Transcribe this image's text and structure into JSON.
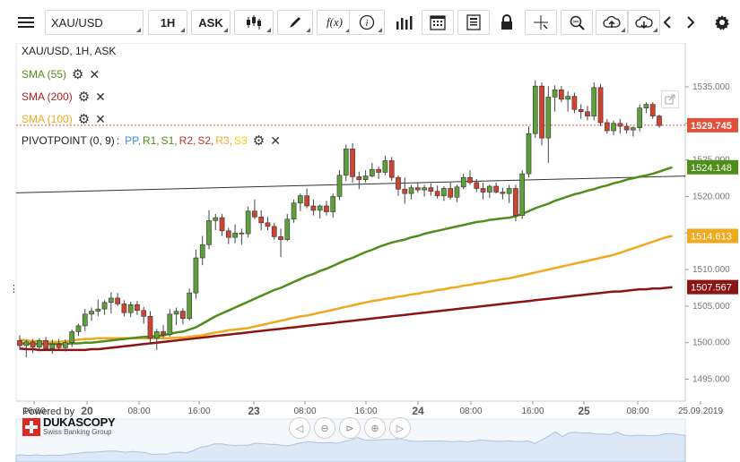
{
  "toolbar": {
    "menu_icon": "hamburger-menu-icon",
    "symbol": "XAU/USD",
    "timeframe": "1H",
    "side": "ASK",
    "icons": [
      "candlestick-icon",
      "draw-pen-icon",
      "function-icon",
      "info-icon",
      "volume-bars-icon",
      "calendar-icon",
      "report-icon",
      "lock-icon",
      "crosshair-icon",
      "zoom-icon",
      "upload-cloud-icon",
      "download-cloud-icon",
      "arrow-left-icon",
      "arrow-right-icon",
      "gear-icon"
    ],
    "fx_label": "f(x)"
  },
  "legend": {
    "title": "XAU/USD, 1H, ASK",
    "sma55": {
      "label": "SMA (55)",
      "color": "#4f8e1a"
    },
    "sma200": {
      "label": "SMA (200)",
      "color": "#b02020"
    },
    "sma100": {
      "label": "SMA (100)",
      "color": "#f0a81e"
    },
    "pivot": {
      "label": "PIVOTPOINT (0, 9)",
      "sep": ":",
      "items": [
        {
          "label": "PP",
          "color": "#3a8ee6"
        },
        {
          "label": "R1",
          "color": "#4f8e1a"
        },
        {
          "label": "S1",
          "color": "#4f8e1a"
        },
        {
          "label": "R2",
          "color": "#c0392b"
        },
        {
          "label": "S2",
          "color": "#c0392b"
        },
        {
          "label": "R3",
          "color": "#f0a81e"
        },
        {
          "label": "S3",
          "color": "#f0d000"
        }
      ]
    }
  },
  "branding": {
    "powered_by": "Powered by",
    "name": "DUKASCOPY",
    "sub": "Swiss Banking Group"
  },
  "price_labels": [
    {
      "value": "1529.745",
      "color": "#e0503a"
    },
    {
      "value": "1524.148",
      "color": "#4f8e1a"
    },
    {
      "value": "1514.613",
      "color": "#f0a81e"
    },
    {
      "value": "1507.567",
      "color": "#8b1414"
    }
  ],
  "chart_data": {
    "type": "candlestick",
    "symbol": "XAU/USD",
    "interval": "1H",
    "side": "ASK",
    "ylim": [
      1492,
      1541
    ],
    "yticks": [
      1495,
      1500,
      1505,
      1510,
      1515,
      1520,
      1525,
      1530,
      1535
    ],
    "ytick_labels": [
      "1495.000",
      "1500.000",
      "1505.000",
      "1510.000",
      "1515.000",
      "1520.000",
      "1525.000",
      "1530.000",
      "1535.000"
    ],
    "x_ticks": [
      {
        "label": "16:00",
        "bold": false
      },
      {
        "label": "20",
        "bold": true
      },
      {
        "label": "08:00",
        "bold": false
      },
      {
        "label": "16:00",
        "bold": false
      },
      {
        "label": "23",
        "bold": true
      },
      {
        "label": "08:00",
        "bold": false
      },
      {
        "label": "16:00",
        "bold": false
      },
      {
        "label": "24",
        "bold": true
      },
      {
        "label": "08:00",
        "bold": false
      },
      {
        "label": "16:00",
        "bold": false
      },
      {
        "label": "25",
        "bold": true
      },
      {
        "label": "08:00",
        "bold": false
      },
      {
        "label": "25.09.2019",
        "bold": false
      }
    ],
    "candles": [
      [
        1500.3,
        1501.0,
        1499.0,
        1499.6
      ],
      [
        1499.6,
        1500.4,
        1498.0,
        1500.1
      ],
      [
        1500.1,
        1500.5,
        1498.6,
        1499.4
      ],
      [
        1499.4,
        1500.6,
        1498.8,
        1500.3
      ],
      [
        1500.3,
        1500.8,
        1499.0,
        1499.2
      ],
      [
        1499.2,
        1500.4,
        1498.5,
        1499.8
      ],
      [
        1499.8,
        1500.5,
        1498.9,
        1499.3
      ],
      [
        1499.3,
        1500.4,
        1498.8,
        1500.0
      ],
      [
        1500.0,
        1501.8,
        1499.4,
        1501.5
      ],
      [
        1501.5,
        1502.6,
        1500.9,
        1502.3
      ],
      [
        1502.3,
        1504.6,
        1501.6,
        1503.9
      ],
      [
        1503.9,
        1504.8,
        1503.0,
        1504.3
      ],
      [
        1504.3,
        1505.9,
        1503.6,
        1504.6
      ],
      [
        1504.6,
        1505.8,
        1503.8,
        1505.5
      ],
      [
        1505.5,
        1506.9,
        1504.0,
        1506.1
      ],
      [
        1506.1,
        1506.8,
        1505.0,
        1505.3
      ],
      [
        1505.3,
        1505.8,
        1503.6,
        1504.1
      ],
      [
        1504.1,
        1505.6,
        1503.5,
        1505.2
      ],
      [
        1505.2,
        1505.7,
        1503.8,
        1504.4
      ],
      [
        1504.4,
        1504.9,
        1502.6,
        1503.6
      ],
      [
        1503.6,
        1504.3,
        1500.0,
        1500.6
      ],
      [
        1500.6,
        1501.9,
        1499.0,
        1501.5
      ],
      [
        1501.5,
        1502.4,
        1500.7,
        1501.1
      ],
      [
        1501.1,
        1504.6,
        1500.8,
        1503.9
      ],
      [
        1503.9,
        1504.8,
        1502.4,
        1504.3
      ],
      [
        1504.3,
        1504.7,
        1502.5,
        1503.3
      ],
      [
        1503.3,
        1507.4,
        1503.0,
        1506.8
      ],
      [
        1506.8,
        1512.7,
        1506.0,
        1511.6
      ],
      [
        1511.6,
        1514.6,
        1510.6,
        1513.4
      ],
      [
        1513.4,
        1518.1,
        1512.8,
        1516.7
      ],
      [
        1516.7,
        1517.6,
        1515.4,
        1517.1
      ],
      [
        1517.1,
        1517.6,
        1514.6,
        1515.3
      ],
      [
        1515.3,
        1515.7,
        1513.5,
        1514.4
      ],
      [
        1514.4,
        1516.2,
        1513.6,
        1515.0
      ],
      [
        1515.0,
        1515.6,
        1513.4,
        1514.9
      ],
      [
        1514.9,
        1518.6,
        1514.4,
        1518.0
      ],
      [
        1518.0,
        1519.6,
        1516.9,
        1517.2
      ],
      [
        1517.2,
        1518.1,
        1515.4,
        1516.4
      ],
      [
        1516.4,
        1517.2,
        1515.4,
        1515.9
      ],
      [
        1515.9,
        1516.4,
        1514.1,
        1514.5
      ],
      [
        1514.5,
        1515.6,
        1511.7,
        1514.1
      ],
      [
        1514.1,
        1517.6,
        1513.9,
        1516.9
      ],
      [
        1516.9,
        1519.6,
        1516.4,
        1519.1
      ],
      [
        1519.1,
        1520.4,
        1518.0,
        1520.1
      ],
      [
        1520.1,
        1521.1,
        1518.4,
        1518.7
      ],
      [
        1518.7,
        1519.6,
        1517.4,
        1518.1
      ],
      [
        1518.1,
        1518.9,
        1517.0,
        1518.7
      ],
      [
        1518.7,
        1519.4,
        1517.4,
        1517.9
      ],
      [
        1517.9,
        1520.4,
        1517.1,
        1520.0
      ],
      [
        1520.0,
        1523.6,
        1519.5,
        1522.9
      ],
      [
        1522.9,
        1527.1,
        1522.1,
        1526.5
      ],
      [
        1526.5,
        1527.3,
        1521.9,
        1522.7
      ],
      [
        1522.7,
        1523.4,
        1521.0,
        1522.3
      ],
      [
        1522.3,
        1523.6,
        1521.9,
        1522.8
      ],
      [
        1522.8,
        1524.6,
        1522.6,
        1523.7
      ],
      [
        1523.7,
        1524.1,
        1522.4,
        1523.3
      ],
      [
        1523.3,
        1525.6,
        1522.9,
        1524.9
      ],
      [
        1524.9,
        1525.4,
        1522.1,
        1522.6
      ],
      [
        1522.6,
        1522.9,
        1520.1,
        1521.0
      ],
      [
        1521.0,
        1522.6,
        1519.0,
        1520.4
      ],
      [
        1520.4,
        1521.6,
        1519.6,
        1521.2
      ],
      [
        1521.2,
        1521.9,
        1520.5,
        1520.9
      ],
      [
        1520.9,
        1521.6,
        1520.0,
        1521.2
      ],
      [
        1521.2,
        1521.8,
        1520.1,
        1520.7
      ],
      [
        1520.7,
        1521.5,
        1519.7,
        1520.1
      ],
      [
        1520.1,
        1521.4,
        1519.4,
        1521.1
      ],
      [
        1521.1,
        1521.9,
        1519.6,
        1519.9
      ],
      [
        1519.9,
        1521.6,
        1519.2,
        1521.3
      ],
      [
        1521.3,
        1523.1,
        1521.0,
        1522.6
      ],
      [
        1522.6,
        1523.6,
        1521.6,
        1521.9
      ],
      [
        1521.9,
        1522.4,
        1520.6,
        1521.1
      ],
      [
        1521.1,
        1521.9,
        1519.6,
        1520.6
      ],
      [
        1520.6,
        1521.6,
        1519.8,
        1521.4
      ],
      [
        1521.4,
        1521.9,
        1520.4,
        1520.6
      ],
      [
        1520.6,
        1521.2,
        1519.6,
        1520.4
      ],
      [
        1520.4,
        1521.6,
        1519.1,
        1521.1
      ],
      [
        1521.1,
        1521.6,
        1516.6,
        1517.4
      ],
      [
        1517.4,
        1523.6,
        1516.9,
        1523.1
      ],
      [
        1523.1,
        1529.6,
        1522.6,
        1528.6
      ],
      [
        1528.6,
        1535.9,
        1528.0,
        1535.1
      ],
      [
        1535.1,
        1535.6,
        1527.0,
        1528.0
      ],
      [
        1528.0,
        1535.1,
        1524.6,
        1533.6
      ],
      [
        1533.6,
        1535.2,
        1531.6,
        1534.6
      ],
      [
        1534.6,
        1535.1,
        1532.9,
        1533.3
      ],
      [
        1533.3,
        1534.4,
        1531.6,
        1533.7
      ],
      [
        1533.7,
        1534.2,
        1531.4,
        1531.9
      ],
      [
        1531.9,
        1532.6,
        1530.6,
        1531.6
      ],
      [
        1531.6,
        1532.4,
        1530.4,
        1531.0
      ],
      [
        1531.0,
        1535.6,
        1530.4,
        1534.9
      ],
      [
        1534.9,
        1535.4,
        1529.6,
        1530.1
      ],
      [
        1530.1,
        1530.6,
        1528.6,
        1529.0
      ],
      [
        1529.0,
        1530.4,
        1528.4,
        1530.0
      ],
      [
        1530.0,
        1530.6,
        1528.6,
        1529.6
      ],
      [
        1529.6,
        1530.1,
        1528.6,
        1529.1
      ],
      [
        1529.1,
        1529.6,
        1528.2,
        1529.4
      ],
      [
        1529.4,
        1532.6,
        1528.9,
        1532.1
      ],
      [
        1532.1,
        1532.9,
        1531.4,
        1532.6
      ],
      [
        1532.6,
        1532.9,
        1530.6,
        1531.0
      ],
      [
        1531.0,
        1531.2,
        1529.4,
        1529.7
      ]
    ],
    "sma55": [
      1499.9,
      1499.9,
      1499.8,
      1499.8,
      1499.8,
      1499.8,
      1499.8,
      1499.8,
      1499.9,
      1499.9,
      1500.0,
      1500.0,
      1500.1,
      1500.2,
      1500.3,
      1500.4,
      1500.5,
      1500.6,
      1500.7,
      1500.8,
      1500.8,
      1500.9,
      1501.0,
      1501.2,
      1501.4,
      1501.5,
      1501.8,
      1502.1,
      1502.6,
      1503.1,
      1503.6,
      1504.0,
      1504.4,
      1504.8,
      1505.2,
      1505.6,
      1506.0,
      1506.4,
      1506.8,
      1507.2,
      1507.5,
      1507.9,
      1508.3,
      1508.7,
      1509.1,
      1509.4,
      1509.8,
      1510.1,
      1510.5,
      1510.9,
      1511.3,
      1511.6,
      1512.0,
      1512.4,
      1512.7,
      1513.1,
      1513.4,
      1513.7,
      1513.9,
      1514.1,
      1514.4,
      1514.6,
      1514.9,
      1515.1,
      1515.3,
      1515.5,
      1515.7,
      1515.9,
      1516.1,
      1516.3,
      1516.5,
      1516.6,
      1516.8,
      1516.9,
      1517.0,
      1517.1,
      1517.3,
      1517.6,
      1518.0,
      1518.4,
      1518.7,
      1519.0,
      1519.4,
      1519.7,
      1520.0,
      1520.3,
      1520.5,
      1520.8,
      1521.0,
      1521.3,
      1521.5,
      1521.8,
      1522.0,
      1522.3,
      1522.5,
      1522.7,
      1522.9,
      1523.1,
      1523.4,
      1523.7,
      1524.0
    ],
    "sma100": [
      1500.4,
      1500.3,
      1500.2,
      1500.2,
      1500.1,
      1500.1,
      1500.1,
      1500.2,
      1500.3,
      1500.4,
      1500.5,
      1500.5,
      1500.6,
      1500.6,
      1500.6,
      1500.6,
      1500.6,
      1500.6,
      1500.6,
      1500.6,
      1500.6,
      1500.6,
      1500.6,
      1500.6,
      1500.7,
      1500.7,
      1500.8,
      1500.9,
      1501.0,
      1501.2,
      1501.4,
      1501.5,
      1501.7,
      1501.8,
      1501.9,
      1502.0,
      1502.2,
      1502.4,
      1502.6,
      1502.8,
      1503.0,
      1503.2,
      1503.4,
      1503.6,
      1503.7,
      1503.9,
      1504.1,
      1504.3,
      1504.5,
      1504.7,
      1504.9,
      1505.1,
      1505.3,
      1505.5,
      1505.7,
      1505.8,
      1506.0,
      1506.1,
      1506.3,
      1506.4,
      1506.6,
      1506.7,
      1506.9,
      1507.0,
      1507.2,
      1507.3,
      1507.5,
      1507.6,
      1507.8,
      1507.9,
      1508.1,
      1508.2,
      1508.4,
      1508.5,
      1508.7,
      1508.8,
      1509.0,
      1509.2,
      1509.4,
      1509.6,
      1509.8,
      1510.0,
      1510.2,
      1510.4,
      1510.6,
      1510.8,
      1511.0,
      1511.2,
      1511.4,
      1511.6,
      1511.8,
      1512.0,
      1512.3,
      1512.6,
      1512.9,
      1513.2,
      1513.5,
      1513.8,
      1514.1,
      1514.4,
      1514.6
    ],
    "sma200": [
      1499.2,
      1499.1,
      1499.1,
      1499.0,
      1499.0,
      1499.0,
      1499.0,
      1499.0,
      1499.0,
      1499.0,
      1499.0,
      1499.1,
      1499.1,
      1499.2,
      1499.3,
      1499.4,
      1499.5,
      1499.6,
      1499.7,
      1499.8,
      1499.9,
      1500.0,
      1500.1,
      1500.2,
      1500.3,
      1500.4,
      1500.5,
      1500.6,
      1500.7,
      1500.8,
      1500.9,
      1501.0,
      1501.1,
      1501.2,
      1501.3,
      1501.4,
      1501.5,
      1501.6,
      1501.7,
      1501.8,
      1501.9,
      1502.0,
      1502.1,
      1502.2,
      1502.3,
      1502.4,
      1502.5,
      1502.6,
      1502.7,
      1502.8,
      1502.9,
      1503.0,
      1503.1,
      1503.2,
      1503.3,
      1503.4,
      1503.5,
      1503.6,
      1503.7,
      1503.8,
      1503.9,
      1504.0,
      1504.1,
      1504.2,
      1504.3,
      1504.4,
      1504.5,
      1504.6,
      1504.7,
      1504.8,
      1504.9,
      1505.0,
      1505.1,
      1505.2,
      1505.3,
      1505.4,
      1505.5,
      1505.6,
      1505.7,
      1505.8,
      1505.9,
      1506.0,
      1506.1,
      1506.2,
      1506.3,
      1506.4,
      1506.5,
      1506.6,
      1506.7,
      1506.8,
      1506.9,
      1507.0,
      1507.0,
      1507.1,
      1507.2,
      1507.3,
      1507.3,
      1507.4,
      1507.4,
      1507.5,
      1507.6
    ],
    "trendline": {
      "from": 1520.5,
      "to": 1522.8
    },
    "last_price": 1529.745
  }
}
